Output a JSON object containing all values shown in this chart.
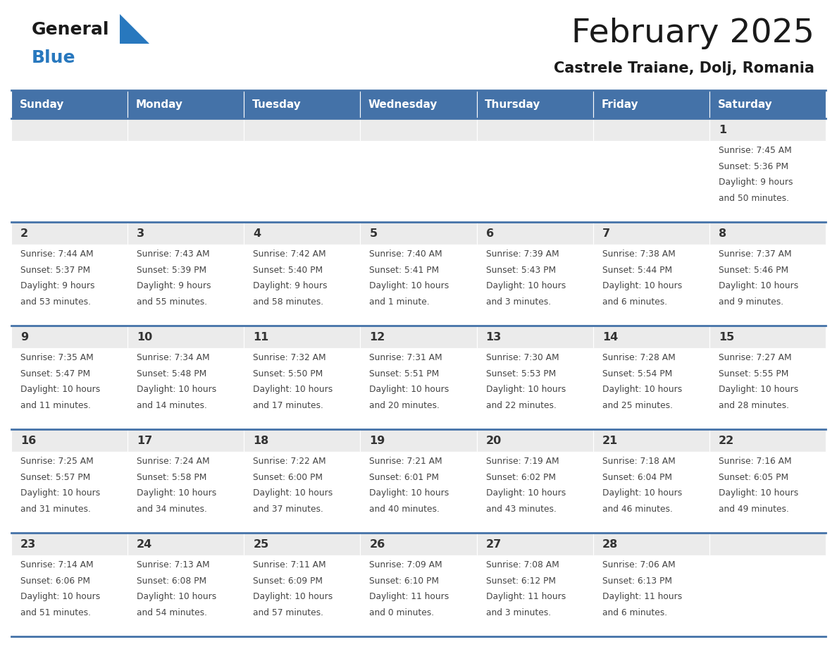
{
  "title": "February 2025",
  "subtitle": "Castrele Traiane, Dolj, Romania",
  "days_of_week": [
    "Sunday",
    "Monday",
    "Tuesday",
    "Wednesday",
    "Thursday",
    "Friday",
    "Saturday"
  ],
  "header_bg": "#4472a8",
  "header_text": "#FFFFFF",
  "cell_bg_top": "#EBEBEB",
  "cell_bg_body": "#FFFFFF",
  "grid_line_color": "#4472a8",
  "day_num_color": "#333333",
  "info_text_color": "#444444",
  "title_color": "#1a1a1a",
  "logo_general_color": "#1a1a1a",
  "logo_blue_color": "#2878BE",
  "calendar_data": [
    [
      {
        "day": null,
        "info": ""
      },
      {
        "day": null,
        "info": ""
      },
      {
        "day": null,
        "info": ""
      },
      {
        "day": null,
        "info": ""
      },
      {
        "day": null,
        "info": ""
      },
      {
        "day": null,
        "info": ""
      },
      {
        "day": 1,
        "info": "Sunrise: 7:45 AM\nSunset: 5:36 PM\nDaylight: 9 hours\nand 50 minutes."
      }
    ],
    [
      {
        "day": 2,
        "info": "Sunrise: 7:44 AM\nSunset: 5:37 PM\nDaylight: 9 hours\nand 53 minutes."
      },
      {
        "day": 3,
        "info": "Sunrise: 7:43 AM\nSunset: 5:39 PM\nDaylight: 9 hours\nand 55 minutes."
      },
      {
        "day": 4,
        "info": "Sunrise: 7:42 AM\nSunset: 5:40 PM\nDaylight: 9 hours\nand 58 minutes."
      },
      {
        "day": 5,
        "info": "Sunrise: 7:40 AM\nSunset: 5:41 PM\nDaylight: 10 hours\nand 1 minute."
      },
      {
        "day": 6,
        "info": "Sunrise: 7:39 AM\nSunset: 5:43 PM\nDaylight: 10 hours\nand 3 minutes."
      },
      {
        "day": 7,
        "info": "Sunrise: 7:38 AM\nSunset: 5:44 PM\nDaylight: 10 hours\nand 6 minutes."
      },
      {
        "day": 8,
        "info": "Sunrise: 7:37 AM\nSunset: 5:46 PM\nDaylight: 10 hours\nand 9 minutes."
      }
    ],
    [
      {
        "day": 9,
        "info": "Sunrise: 7:35 AM\nSunset: 5:47 PM\nDaylight: 10 hours\nand 11 minutes."
      },
      {
        "day": 10,
        "info": "Sunrise: 7:34 AM\nSunset: 5:48 PM\nDaylight: 10 hours\nand 14 minutes."
      },
      {
        "day": 11,
        "info": "Sunrise: 7:32 AM\nSunset: 5:50 PM\nDaylight: 10 hours\nand 17 minutes."
      },
      {
        "day": 12,
        "info": "Sunrise: 7:31 AM\nSunset: 5:51 PM\nDaylight: 10 hours\nand 20 minutes."
      },
      {
        "day": 13,
        "info": "Sunrise: 7:30 AM\nSunset: 5:53 PM\nDaylight: 10 hours\nand 22 minutes."
      },
      {
        "day": 14,
        "info": "Sunrise: 7:28 AM\nSunset: 5:54 PM\nDaylight: 10 hours\nand 25 minutes."
      },
      {
        "day": 15,
        "info": "Sunrise: 7:27 AM\nSunset: 5:55 PM\nDaylight: 10 hours\nand 28 minutes."
      }
    ],
    [
      {
        "day": 16,
        "info": "Sunrise: 7:25 AM\nSunset: 5:57 PM\nDaylight: 10 hours\nand 31 minutes."
      },
      {
        "day": 17,
        "info": "Sunrise: 7:24 AM\nSunset: 5:58 PM\nDaylight: 10 hours\nand 34 minutes."
      },
      {
        "day": 18,
        "info": "Sunrise: 7:22 AM\nSunset: 6:00 PM\nDaylight: 10 hours\nand 37 minutes."
      },
      {
        "day": 19,
        "info": "Sunrise: 7:21 AM\nSunset: 6:01 PM\nDaylight: 10 hours\nand 40 minutes."
      },
      {
        "day": 20,
        "info": "Sunrise: 7:19 AM\nSunset: 6:02 PM\nDaylight: 10 hours\nand 43 minutes."
      },
      {
        "day": 21,
        "info": "Sunrise: 7:18 AM\nSunset: 6:04 PM\nDaylight: 10 hours\nand 46 minutes."
      },
      {
        "day": 22,
        "info": "Sunrise: 7:16 AM\nSunset: 6:05 PM\nDaylight: 10 hours\nand 49 minutes."
      }
    ],
    [
      {
        "day": 23,
        "info": "Sunrise: 7:14 AM\nSunset: 6:06 PM\nDaylight: 10 hours\nand 51 minutes."
      },
      {
        "day": 24,
        "info": "Sunrise: 7:13 AM\nSunset: 6:08 PM\nDaylight: 10 hours\nand 54 minutes."
      },
      {
        "day": 25,
        "info": "Sunrise: 7:11 AM\nSunset: 6:09 PM\nDaylight: 10 hours\nand 57 minutes."
      },
      {
        "day": 26,
        "info": "Sunrise: 7:09 AM\nSunset: 6:10 PM\nDaylight: 11 hours\nand 0 minutes."
      },
      {
        "day": 27,
        "info": "Sunrise: 7:08 AM\nSunset: 6:12 PM\nDaylight: 11 hours\nand 3 minutes."
      },
      {
        "day": 28,
        "info": "Sunrise: 7:06 AM\nSunset: 6:13 PM\nDaylight: 11 hours\nand 6 minutes."
      },
      {
        "day": null,
        "info": ""
      }
    ]
  ]
}
